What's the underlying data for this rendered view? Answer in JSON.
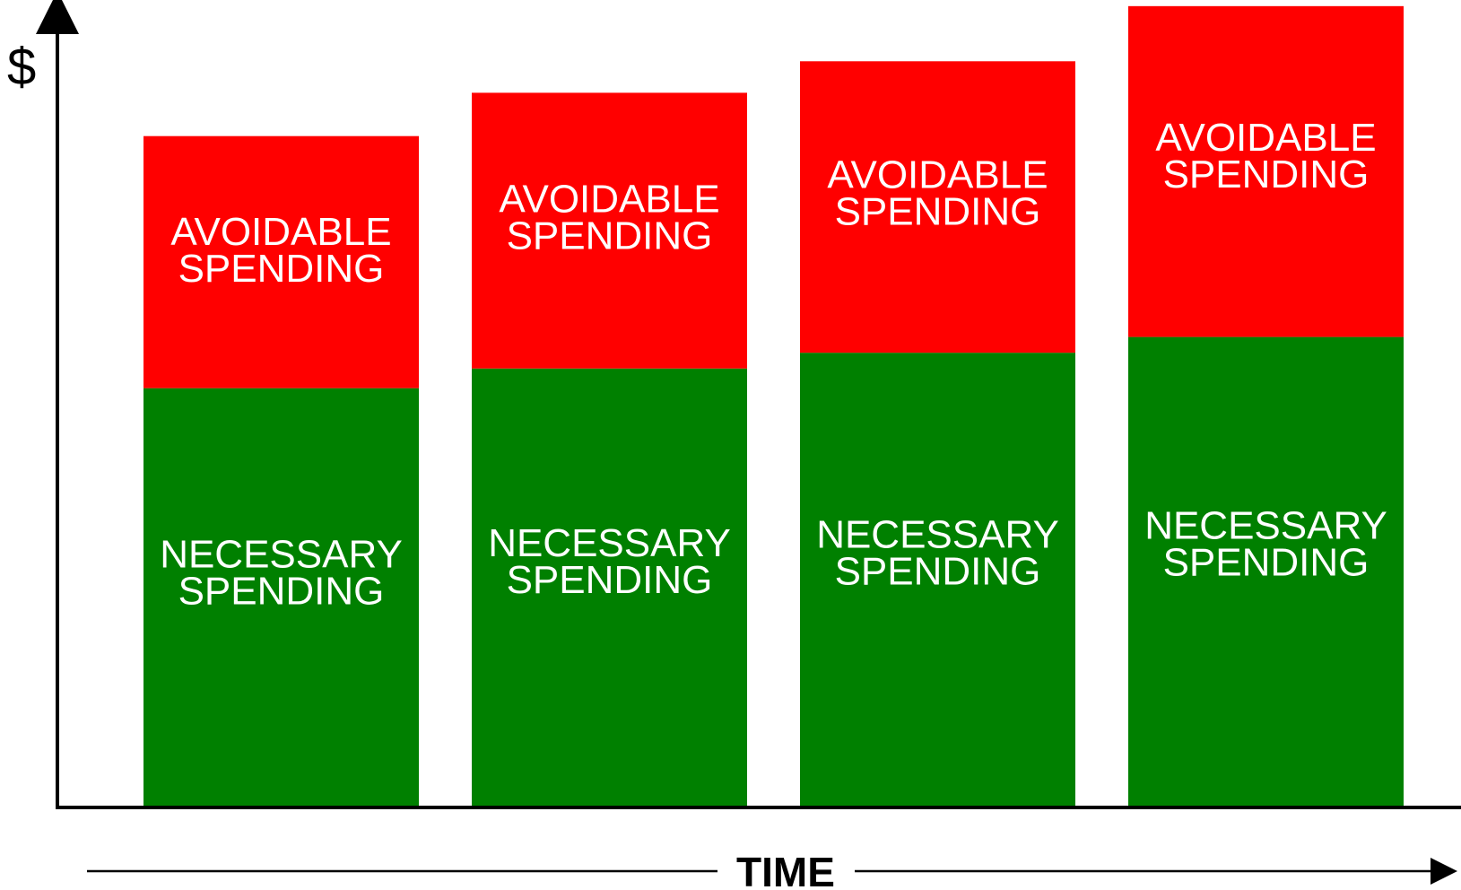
{
  "chart_data": {
    "type": "bar",
    "stacked": true,
    "ylabel": "$",
    "xlabel": "TIME",
    "categories": [
      "",
      "",
      "",
      ""
    ],
    "ylim": [
      0,
      100
    ],
    "grid": false,
    "series": [
      {
        "name": "NECESSARY SPENDING",
        "label_lines": [
          "NECESSARY",
          "SPENDING"
        ],
        "color": "#008000",
        "values": [
          53,
          55.5,
          57.5,
          59.5
        ]
      },
      {
        "name": "AVOIDABLE SPENDING",
        "label_lines": [
          "AVOIDABLE",
          "SPENDING"
        ],
        "color": "#ff0000",
        "values": [
          32,
          35,
          37,
          42
        ]
      }
    ]
  }
}
